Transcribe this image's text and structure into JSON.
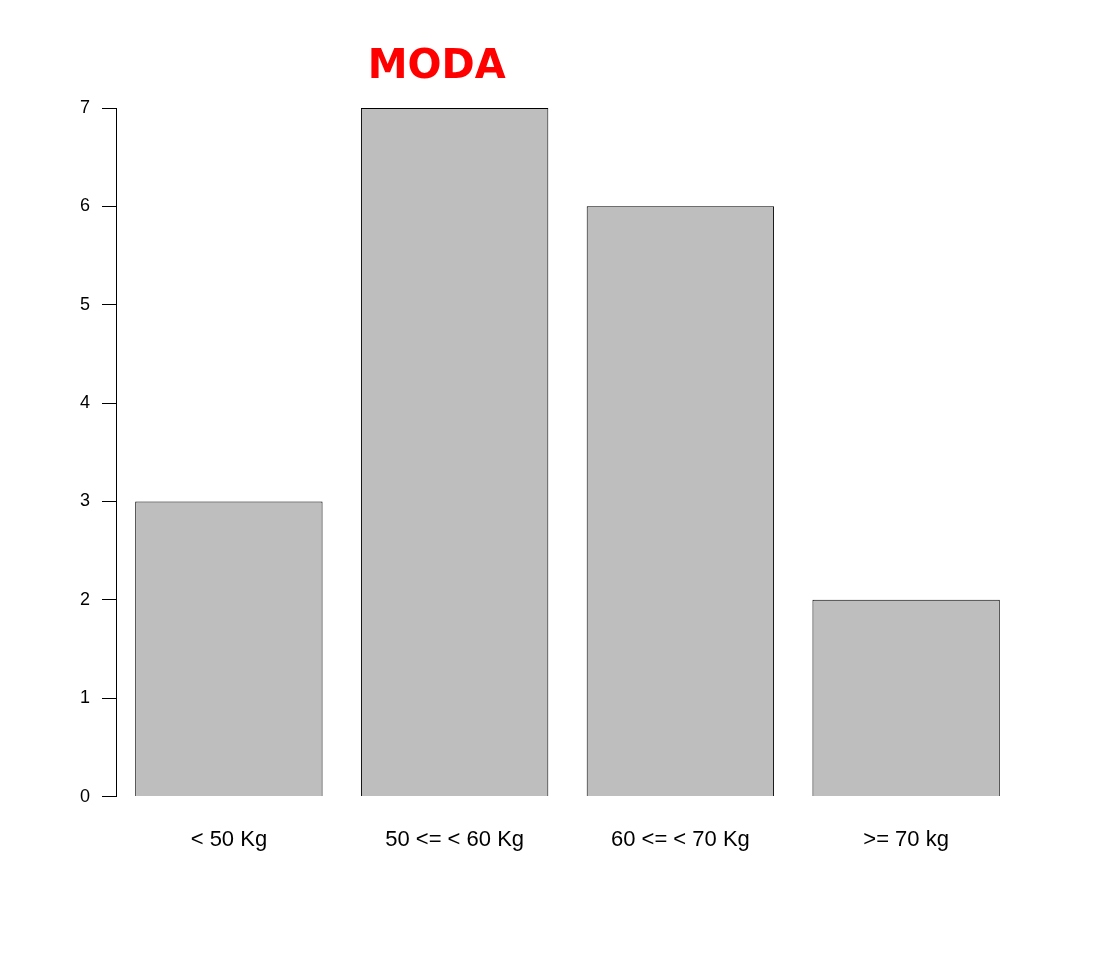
{
  "chart_data": {
    "type": "bar",
    "categories": [
      "< 50 Kg",
      "50 <= < 60 Kg",
      "60 <= < 70 Kg",
      ">= 70 kg"
    ],
    "values": [
      3,
      7,
      6,
      2
    ],
    "color": "#bebebe",
    "ylim": [
      0,
      7
    ],
    "yticks": [
      0,
      1,
      2,
      3,
      4,
      5,
      6,
      7
    ],
    "annotations": [
      {
        "text": "MODA",
        "x": "50 <= < 60 Kg",
        "y": 7
      }
    ],
    "grid": false,
    "legend": false
  }
}
